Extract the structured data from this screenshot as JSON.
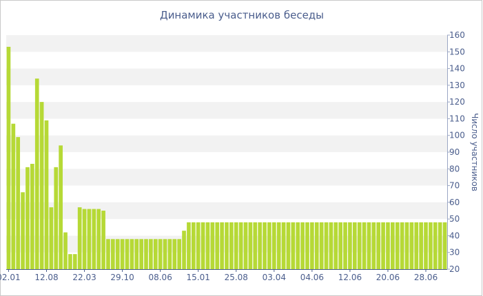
{
  "chart_data": {
    "type": "bar",
    "title": "Динамика участников беседы",
    "xlabel": "",
    "ylabel": "Число участников",
    "ylim": [
      20,
      160
    ],
    "yticks": [
      20,
      30,
      40,
      50,
      60,
      70,
      80,
      90,
      100,
      110,
      120,
      130,
      140,
      150,
      160
    ],
    "x_tick_labels": [
      "02.01",
      "12.08",
      "22.03",
      "29.10",
      "08.06",
      "15.01",
      "25.08",
      "03.04",
      "04.06",
      "12.06",
      "20.06",
      "28.06"
    ],
    "x_tick_bar_index": [
      0,
      8,
      16,
      24,
      32,
      40,
      48,
      56,
      64,
      72,
      80,
      88
    ],
    "values": [
      153,
      107,
      99,
      66,
      81,
      83,
      134,
      120,
      109,
      57,
      81,
      94,
      42,
      29,
      29,
      57,
      56,
      56,
      56,
      56,
      55,
      38,
      38,
      38,
      38,
      38,
      38,
      38,
      38,
      38,
      38,
      38,
      38,
      38,
      38,
      38,
      38,
      43,
      48,
      48,
      48,
      48,
      48,
      48,
      48,
      48,
      48,
      48,
      48,
      48,
      48,
      48,
      48,
      48,
      48,
      48,
      48,
      48,
      48,
      48,
      48,
      48,
      48,
      48,
      48,
      48,
      48,
      48,
      48,
      48,
      48,
      48,
      48,
      48,
      48,
      48,
      48,
      48,
      48,
      48,
      48,
      48,
      48,
      48,
      48,
      48,
      48,
      48,
      48,
      48,
      48,
      48,
      48
    ],
    "bar_color": "#b6d936",
    "band_color": "#f2f2f2",
    "axis_color": "#4a5d8c",
    "grid": true,
    "legend": "none"
  }
}
